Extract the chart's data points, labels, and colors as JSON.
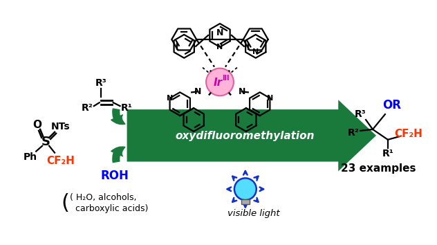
{
  "bg_color": "#ffffff",
  "arrow_color": "#1a7a3c",
  "arrow_text": "oxydifluoromethylation",
  "arrow_text_color": "#ffffff",
  "ir_circle_color": "#ffb3d9",
  "ir_circle_edge": "#e060a0",
  "cf2h_color": "#ff3300",
  "roh_color": "#0000ff",
  "or_color": "#0000ff",
  "product_cf2h_color": "#ff3300",
  "examples_text": "23 examples",
  "visible_light_text": "visible light",
  "roh_text": "ROH",
  "bracket_line1": "( H₂O, alcohols,",
  "bracket_line2": "  carboxylic acids)",
  "nts_text": "NTs",
  "ph_text": "Ph"
}
